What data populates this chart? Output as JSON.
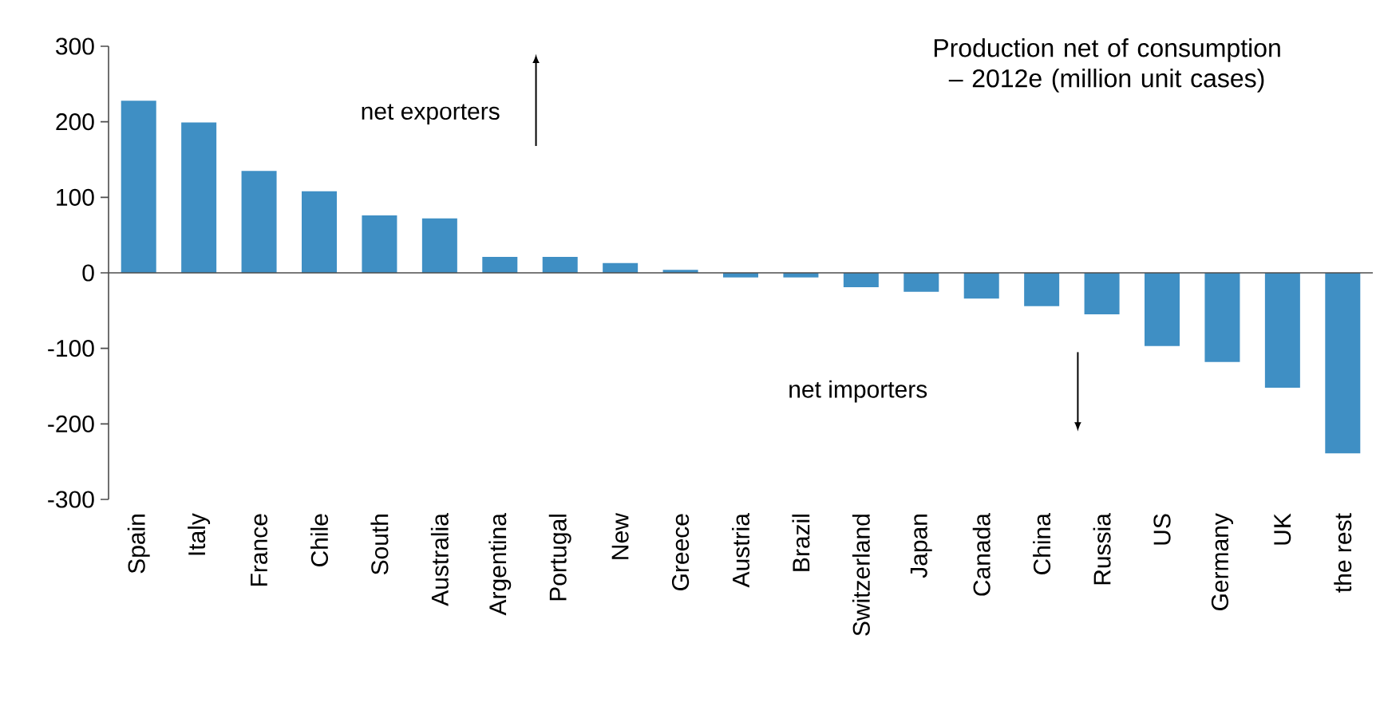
{
  "chart_data": {
    "type": "bar",
    "title": "Production net of consumption – 2012e (million unit cases)",
    "categories": [
      "Spain",
      "Italy",
      "France",
      "Chile",
      "South",
      "Australia",
      "Argentina",
      "Portugal",
      "New",
      "Greece",
      "Austria",
      "Brazil",
      "Switzerland",
      "Japan",
      "Canada",
      "China",
      "Russia",
      "US",
      "Germany",
      "UK",
      "the rest"
    ],
    "values": [
      228,
      199,
      135,
      108,
      76,
      72,
      21,
      21,
      13,
      4,
      -6,
      -6,
      -19,
      -25,
      -34,
      -44,
      -55,
      -97,
      -118,
      -152,
      -239
    ],
    "color": "#3f8fc4",
    "ylim": [
      -300,
      300
    ],
    "yticks": [
      -300,
      -200,
      -100,
      0,
      100,
      200,
      300
    ],
    "annotations": [
      "net exporters",
      "net importers"
    ]
  }
}
